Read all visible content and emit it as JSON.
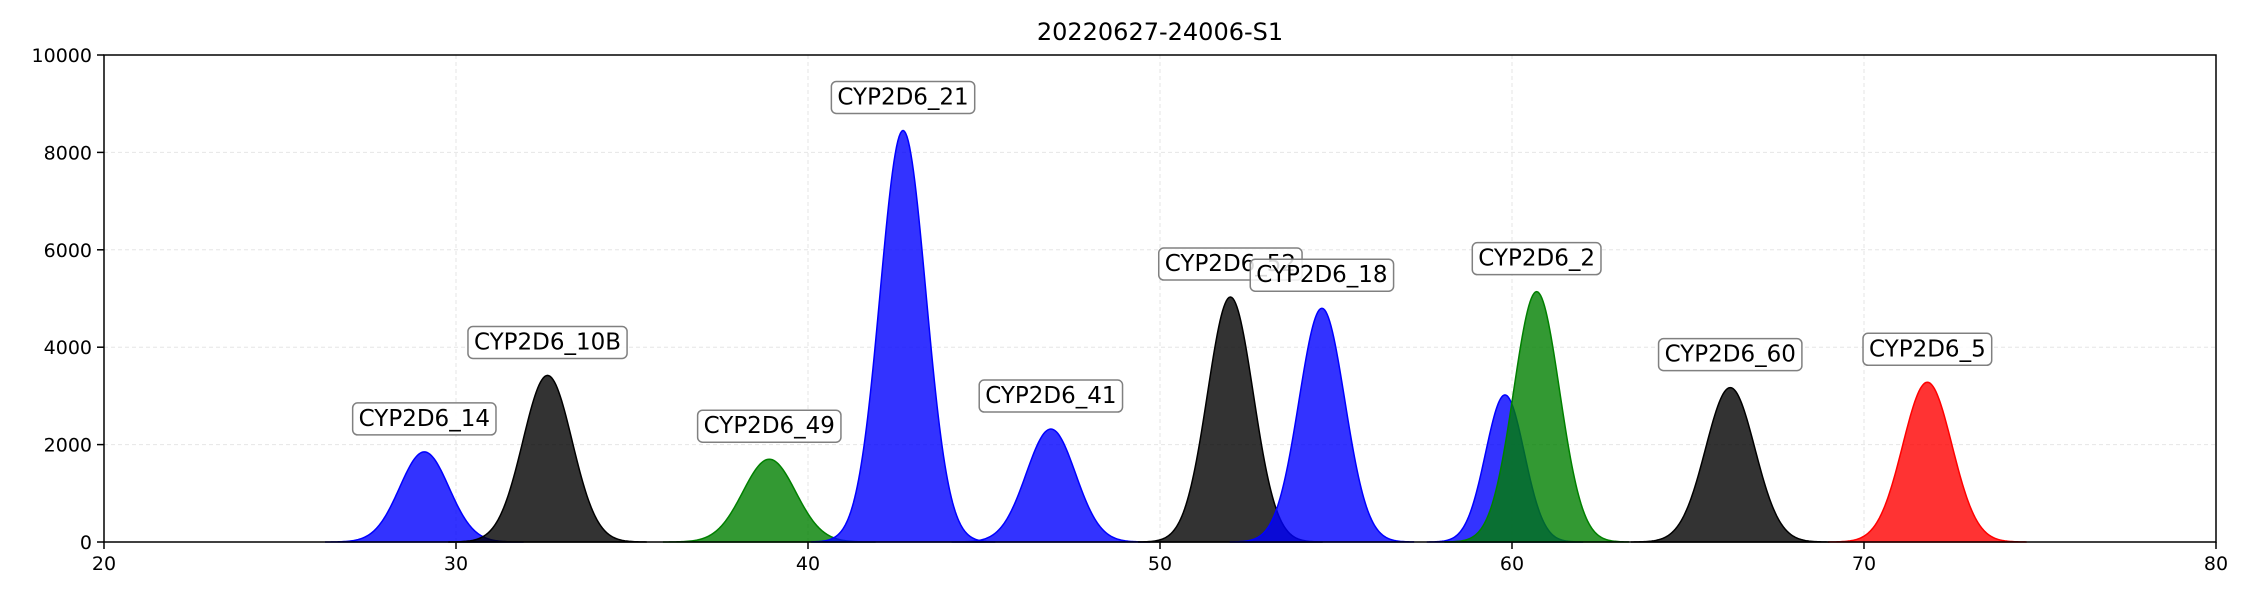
{
  "chart_data": {
    "type": "area",
    "title": "20220627-24006-S1",
    "xlabel": "",
    "ylabel": "",
    "xlim": [
      20,
      80
    ],
    "ylim": [
      0,
      10000
    ],
    "x_ticks": [
      20,
      30,
      40,
      50,
      60,
      70,
      80
    ],
    "y_ticks": [
      0,
      2000,
      4000,
      6000,
      8000,
      10000
    ],
    "grid": true,
    "colors": {
      "blue": "#0000ff",
      "black": "#000000",
      "green": "#008000",
      "red": "#ff0000"
    },
    "peaks": [
      {
        "label": "CYP2D6_14",
        "center": 29.1,
        "height": 1850,
        "sigma": 0.7,
        "color": "blue"
      },
      {
        "label": "CYP2D6_10B",
        "center": 32.6,
        "height": 3420,
        "sigma": 0.7,
        "color": "black"
      },
      {
        "label": "CYP2D6_49",
        "center": 38.9,
        "height": 1700,
        "sigma": 0.75,
        "color": "green"
      },
      {
        "label": "CYP2D6_21",
        "center": 42.7,
        "height": 8450,
        "sigma": 0.65,
        "color": "blue"
      },
      {
        "label": "CYP2D6_41",
        "center": 46.9,
        "height": 2320,
        "sigma": 0.7,
        "color": "blue"
      },
      {
        "label": "CYP2D6_52",
        "center": 52.0,
        "height": 5030,
        "sigma": 0.65,
        "color": "black"
      },
      {
        "label": "CYP2D6_18",
        "center": 54.6,
        "height": 4800,
        "sigma": 0.65,
        "color": "blue"
      },
      {
        "label": "",
        "center": 59.8,
        "height": 3020,
        "sigma": 0.55,
        "color": "blue"
      },
      {
        "label": "CYP2D6_2",
        "center": 60.7,
        "height": 5140,
        "sigma": 0.65,
        "color": "green"
      },
      {
        "label": "CYP2D6_60",
        "center": 66.2,
        "height": 3170,
        "sigma": 0.7,
        "color": "black"
      },
      {
        "label": "CYP2D6_5",
        "center": 71.8,
        "height": 3280,
        "sigma": 0.7,
        "color": "red"
      }
    ]
  }
}
